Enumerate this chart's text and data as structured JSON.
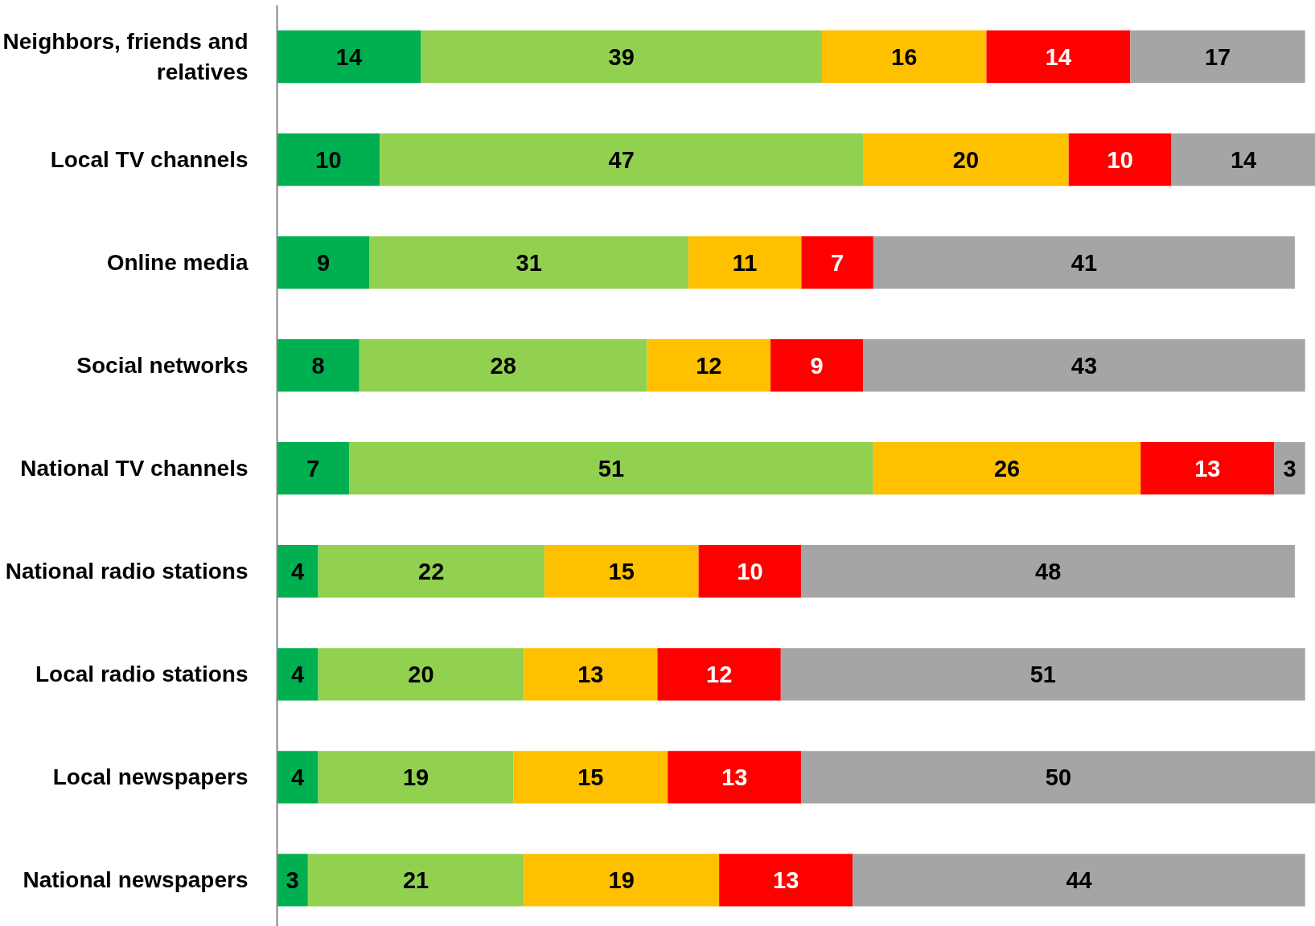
{
  "chart_data": {
    "type": "bar",
    "orientation": "horizontal",
    "stacked": true,
    "data_labels": true,
    "tick_labels": "y",
    "xlim": [
      0,
      101
    ],
    "categories": [
      "Neighbors, friends and relatives",
      "Local TV channels",
      "Online media",
      "Social networks",
      "National TV channels",
      "National radio stations",
      "Local radio stations",
      "Local newspapers",
      "National newspapers"
    ],
    "series": [
      {
        "color": "#00b050",
        "values": [
          14,
          10,
          9,
          8,
          7,
          4,
          4,
          4,
          3
        ]
      },
      {
        "color": "#92d050",
        "values": [
          39,
          47,
          31,
          28,
          51,
          22,
          20,
          19,
          21
        ]
      },
      {
        "color": "#ffc000",
        "values": [
          16,
          20,
          11,
          12,
          26,
          15,
          13,
          15,
          19
        ]
      },
      {
        "color": "#ff0000",
        "values": [
          14,
          10,
          7,
          9,
          13,
          10,
          12,
          13,
          13
        ]
      },
      {
        "color": "#a5a5a5",
        "values": [
          17,
          14,
          41,
          43,
          3,
          48,
          51,
          50,
          44
        ]
      }
    ]
  }
}
